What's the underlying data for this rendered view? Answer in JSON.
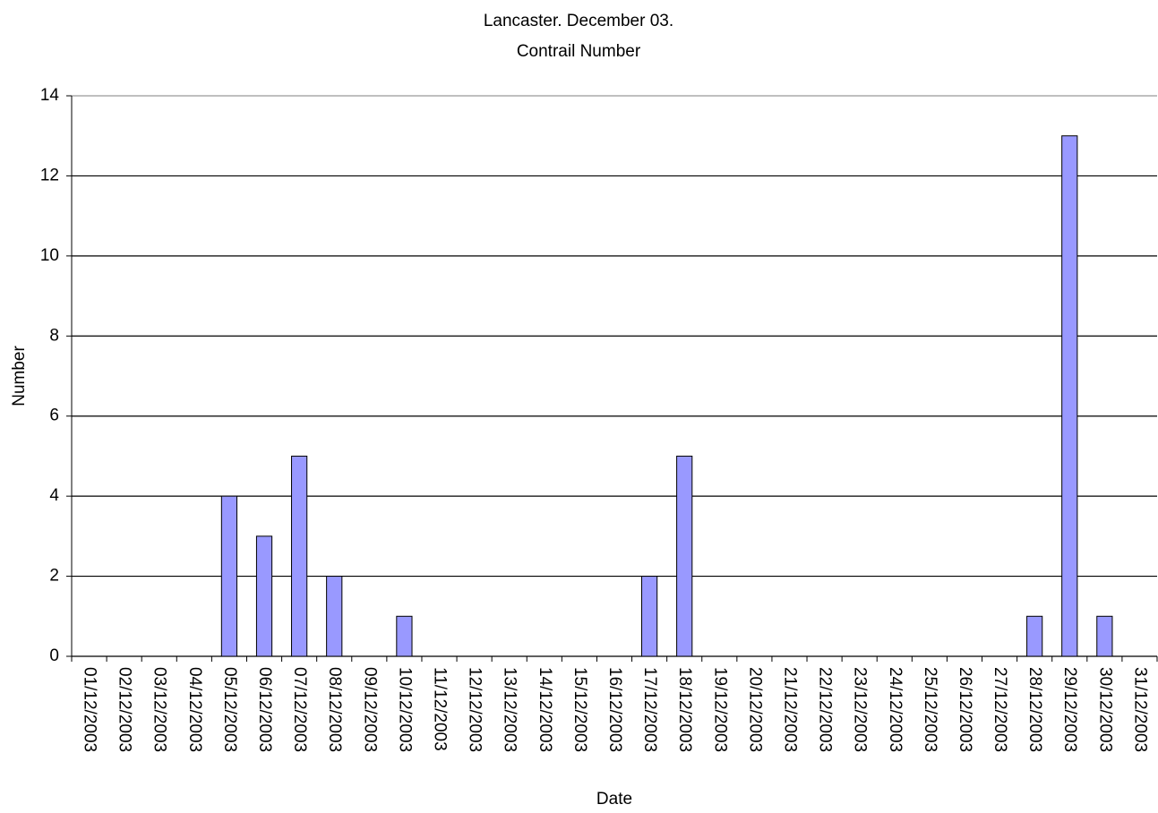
{
  "chart_data": {
    "type": "bar",
    "title": "Lancaster. December 03.",
    "subtitle": "Contrail Number",
    "x_label": "Date",
    "y_label": "Number",
    "categories": [
      "01/12/2003",
      "02/12/2003",
      "03/12/2003",
      "04/12/2003",
      "05/12/2003",
      "06/12/2003",
      "07/12/2003",
      "08/12/2003",
      "09/12/2003",
      "10/12/2003",
      "11/12/2003",
      "12/12/2003",
      "13/12/2003",
      "14/12/2003",
      "15/12/2003",
      "16/12/2003",
      "17/12/2003",
      "18/12/2003",
      "19/12/2003",
      "20/12/2003",
      "21/12/2003",
      "22/12/2003",
      "23/12/2003",
      "24/12/2003",
      "25/12/2003",
      "26/12/2003",
      "27/12/2003",
      "28/12/2003",
      "29/12/2003",
      "30/12/2003",
      "31/12/2003"
    ],
    "values": [
      0,
      0,
      0,
      0,
      4,
      3,
      5,
      2,
      0,
      1,
      0,
      0,
      0,
      0,
      0,
      0,
      2,
      5,
      0,
      0,
      0,
      0,
      0,
      0,
      0,
      0,
      0,
      1,
      13,
      1,
      0
    ],
    "color": "#9999ff",
    "ylim": [
      0,
      14
    ],
    "yticks": [
      0,
      2,
      4,
      6,
      8,
      10,
      12,
      14
    ],
    "grid": true
  }
}
